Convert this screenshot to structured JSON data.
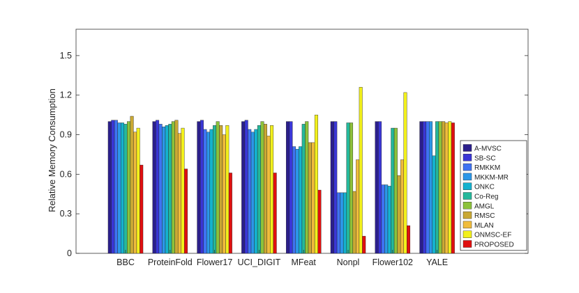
{
  "chart_data": {
    "type": "bar",
    "title": "",
    "xlabel": "",
    "ylabel": "Relative Memory Consumption",
    "ylim": [
      0,
      1.7
    ],
    "yticks": [
      "0",
      "0.3",
      "0.6",
      "0.9",
      "1.2",
      "1.5"
    ],
    "ytick_values": [
      0,
      0.3,
      0.6,
      0.9,
      1.2,
      1.5
    ],
    "grid": false,
    "legend_position": "right",
    "categories": [
      "BBC",
      "ProteinFold",
      "Flower17",
      "UCI_DIGIT",
      "MFeat",
      "Nonpl",
      "Flower102",
      "YALE"
    ],
    "series": [
      {
        "name": "A-MVSC",
        "color": "#2b1f8c",
        "values": [
          1.0,
          1.0,
          1.0,
          1.0,
          1.0,
          1.0,
          1.0,
          1.0
        ]
      },
      {
        "name": "SB-SC",
        "color": "#3a36d6",
        "values": [
          1.01,
          1.01,
          1.01,
          1.01,
          1.0,
          1.0,
          1.0,
          1.0
        ]
      },
      {
        "name": "RMKKM",
        "color": "#3f73f2",
        "values": [
          1.01,
          0.98,
          0.94,
          0.94,
          0.81,
          0.46,
          0.52,
          1.0
        ]
      },
      {
        "name": "MKKM-MR",
        "color": "#2c97e8",
        "values": [
          0.99,
          0.96,
          0.92,
          0.92,
          0.79,
          0.46,
          0.52,
          1.0
        ]
      },
      {
        "name": "ONKC",
        "color": "#15b2cf",
        "values": [
          0.99,
          0.97,
          0.94,
          0.94,
          0.81,
          0.46,
          0.51,
          0.74
        ]
      },
      {
        "name": "Co-Reg",
        "color": "#25b89b",
        "values": [
          0.98,
          0.98,
          0.97,
          0.97,
          0.98,
          0.99,
          0.95,
          1.0
        ]
      },
      {
        "name": "AMGL",
        "color": "#8cc23b",
        "values": [
          1.0,
          1.0,
          1.0,
          1.0,
          1.0,
          0.99,
          0.95,
          1.0
        ]
      },
      {
        "name": "RMSC",
        "color": "#c9a834",
        "values": [
          1.04,
          1.01,
          0.97,
          0.98,
          0.84,
          0.47,
          0.59,
          1.0
        ]
      },
      {
        "name": "MLAN",
        "color": "#f0bc3c",
        "values": [
          0.92,
          0.91,
          0.9,
          0.89,
          0.84,
          0.71,
          0.71,
          0.99
        ]
      },
      {
        "name": "ONMSC-EF",
        "color": "#f2f01c",
        "values": [
          0.95,
          0.95,
          0.97,
          0.97,
          1.05,
          1.26,
          1.22,
          1.0
        ]
      },
      {
        "name": "PROPOSED",
        "color": "#e01010",
        "values": [
          0.67,
          0.64,
          0.61,
          0.61,
          0.48,
          0.13,
          0.21,
          0.99
        ]
      }
    ]
  }
}
